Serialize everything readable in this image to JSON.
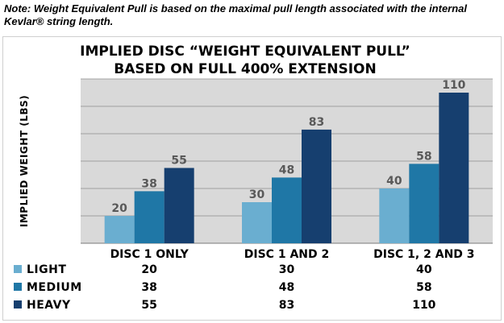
{
  "note": "Note: Weight Equivalent Pull is based on the maximal pull length associated with the internal Kevlar® string length.",
  "colors": {
    "plot_bg": "#d9d9d9",
    "grid": "#8c8c8c",
    "light": "#6aaed0",
    "medium": "#1f77a6",
    "heavy": "#163f6f",
    "value_label": "#595959"
  },
  "chart_data": {
    "type": "bar",
    "title": "IMPLIED DISC “WEIGHT EQUIVALENT PULL”\nBASED ON FULL 400% EXTENSION",
    "title_lines": [
      "IMPLIED DISC “WEIGHT EQUIVALENT PULL”",
      "BASED ON FULL 400% EXTENSION"
    ],
    "xlabel": "",
    "ylabel": "IMPLIED WEIGHT (LBS)",
    "ylim": [
      0,
      120
    ],
    "grid": true,
    "legend": "data-table-below",
    "categories": [
      "DISC 1 ONLY",
      "DISC 1 AND 2",
      "DISC 1, 2 AND 3"
    ],
    "series": [
      {
        "name": "LIGHT",
        "color": "#6aaed0",
        "values": [
          20,
          30,
          40
        ]
      },
      {
        "name": "MEDIUM",
        "color": "#1f77a6",
        "values": [
          38,
          48,
          58
        ]
      },
      {
        "name": "HEAVY",
        "color": "#163f6f",
        "values": [
          55,
          83,
          110
        ]
      }
    ]
  }
}
